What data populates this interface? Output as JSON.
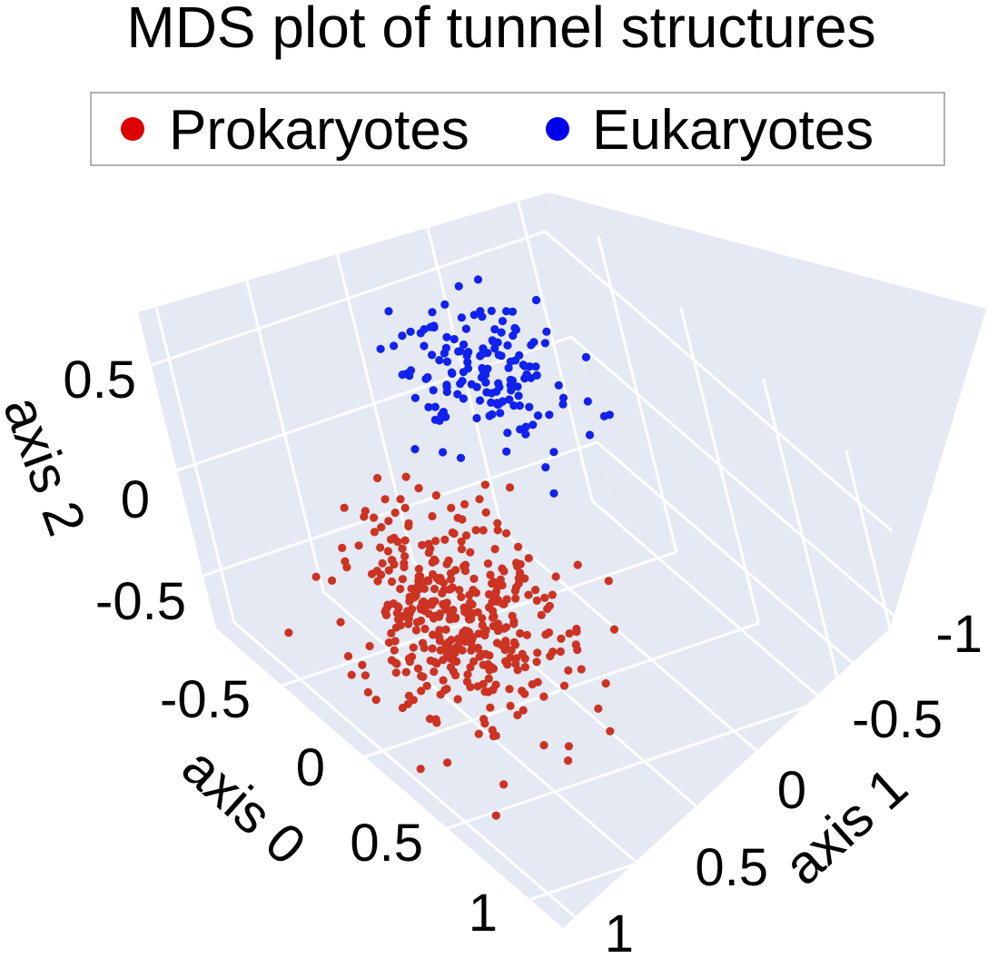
{
  "chart_data": {
    "type": "scatter",
    "projection": "3d",
    "title": "MDS plot of tunnel structures",
    "legend": {
      "placement": "top-center",
      "entries": [
        "Prokaryotes",
        "Eukaryotes"
      ]
    },
    "colors": {
      "Prokaryotes": "#cc3322",
      "Eukaryotes": "#1122ee",
      "pane": "#e5e9f3",
      "grid": "#ffffff"
    },
    "grid": true,
    "axes": {
      "x": {
        "label": "axis 0",
        "ticks": [
          "-0.5",
          "0",
          "0.5",
          "1"
        ],
        "range": [
          -0.9,
          1.2
        ]
      },
      "y": {
        "label": "axis 1",
        "ticks": [
          "1",
          "0.5",
          "0",
          "-0.5",
          "-1"
        ],
        "range": [
          -1.1,
          1.1
        ]
      },
      "z": {
        "label": "axis 2",
        "ticks": [
          "0.5",
          "0",
          "-0.5"
        ],
        "range": [
          -0.75,
          0.75
        ]
      }
    },
    "series": [
      {
        "name": "Prokaryotes",
        "generated": true,
        "count": 420,
        "seed": 11,
        "center": [
          0.25,
          0.6,
          -0.05
        ],
        "spread": [
          0.22,
          0.22,
          0.2
        ],
        "outliers": [
          [
            0.6,
            0.9,
            -0.68
          ],
          [
            0.4,
            0.95,
            -0.55
          ],
          [
            0.1,
            0.2,
            0.35
          ]
        ]
      },
      {
        "name": "Eukaryotes",
        "generated": true,
        "count": 150,
        "seed": 29,
        "center": [
          -0.45,
          -0.35,
          0.35
        ],
        "spread": [
          0.18,
          0.18,
          0.12
        ],
        "outliers": [
          [
            -0.8,
            -0.9,
            0.3
          ],
          [
            -0.6,
            -0.95,
            0.15
          ],
          [
            0.0,
            -0.2,
            0.25
          ]
        ]
      }
    ]
  }
}
